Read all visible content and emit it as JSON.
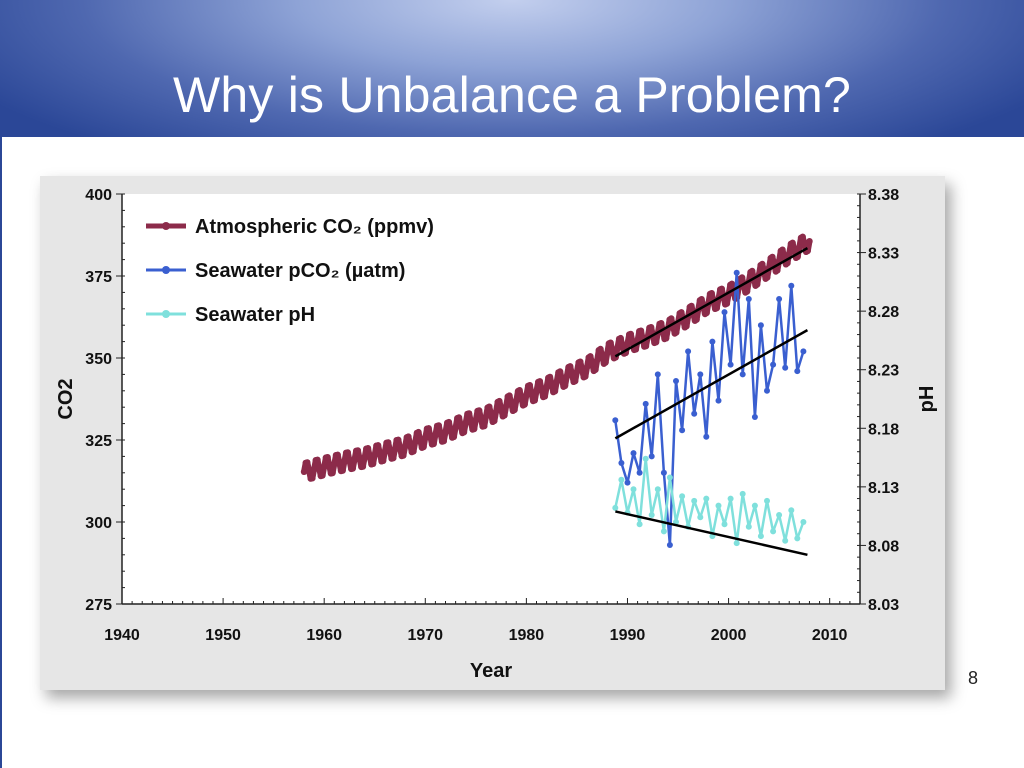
{
  "slide": {
    "title": "Why is Unbalance a Problem?",
    "page_number": "8"
  },
  "colors": {
    "header_dark": "#2b4797",
    "atmospheric": "#8c2b4a",
    "seawater_pco2": "#3a5fd0",
    "seawater_ph": "#7fe0dc",
    "trend": "#000000"
  },
  "chart_data": {
    "type": "line",
    "xlabel": "Year",
    "ylabel": "CO2",
    "y2label": "pH",
    "xlim": [
      1940,
      2013
    ],
    "ylim": [
      275,
      400
    ],
    "y2lim": [
      8.03,
      8.38
    ],
    "xticks": [
      "1940",
      "1950",
      "1960",
      "1970",
      "1980",
      "1990",
      "2000",
      "2010"
    ],
    "yticks": [
      "275",
      "300",
      "325",
      "350",
      "375",
      "400"
    ],
    "y2ticks": [
      "8.03",
      "8.08",
      "8.13",
      "8.18",
      "8.23",
      "8.28",
      "8.33",
      "8.38"
    ],
    "legend_position": "top-left",
    "series": [
      {
        "name": "Atmospheric CO₂ (ppmv)",
        "axis": "left",
        "color": "#8c2b4a",
        "x": [
          1958,
          1960,
          1962,
          1964,
          1966,
          1968,
          1970,
          1972,
          1974,
          1976,
          1978,
          1980,
          1982,
          1984,
          1986,
          1988,
          1990,
          1992,
          1994,
          1996,
          1998,
          2000,
          2002,
          2004,
          2006,
          2008
        ],
        "y": [
          315.3,
          316.9,
          318.4,
          319.6,
          321.4,
          323.0,
          325.7,
          327.4,
          330.2,
          332.0,
          335.4,
          338.7,
          341.1,
          344.4,
          347.2,
          351.6,
          354.4,
          356.4,
          358.8,
          362.6,
          366.7,
          369.4,
          373.2,
          377.5,
          381.9,
          385.6
        ]
      },
      {
        "name": "Seawater pCO₂ (µatm)",
        "axis": "left",
        "color": "#3a5fd0",
        "x": [
          1988.8,
          1989.4,
          1990.0,
          1990.6,
          1991.2,
          1991.8,
          1992.4,
          1993.0,
          1993.6,
          1994.2,
          1994.8,
          1995.4,
          1996.0,
          1996.6,
          1997.2,
          1997.8,
          1998.4,
          1999.0,
          1999.6,
          2000.2,
          2000.8,
          2001.4,
          2002.0,
          2002.6,
          2003.2,
          2003.8,
          2004.4,
          2005.0,
          2005.6,
          2006.2,
          2006.8,
          2007.4
        ],
        "y": [
          331,
          318,
          312,
          321,
          315,
          336,
          320,
          345,
          315,
          293,
          343,
          328,
          352,
          333,
          345,
          326,
          355,
          337,
          364,
          348,
          376,
          345,
          368,
          332,
          360,
          340,
          348,
          368,
          347,
          372,
          346,
          352
        ]
      },
      {
        "name": "Seawater pH",
        "axis": "right",
        "color": "#7fe0dc",
        "x": [
          1988.8,
          1989.4,
          1990.0,
          1990.6,
          1991.2,
          1991.8,
          1992.4,
          1993.0,
          1993.6,
          1994.2,
          1994.8,
          1995.4,
          1996.0,
          1996.6,
          1997.2,
          1997.8,
          1998.4,
          1999.0,
          1999.6,
          2000.2,
          2000.8,
          2001.4,
          2002.0,
          2002.6,
          2003.2,
          2003.8,
          2004.4,
          2005.0,
          2005.6,
          2006.2,
          2006.8,
          2007.4
        ],
        "y": [
          8.112,
          8.136,
          8.108,
          8.128,
          8.098,
          8.154,
          8.106,
          8.128,
          8.092,
          8.138,
          8.1,
          8.122,
          8.096,
          8.118,
          8.104,
          8.12,
          8.088,
          8.114,
          8.098,
          8.12,
          8.082,
          8.124,
          8.096,
          8.114,
          8.088,
          8.118,
          8.092,
          8.106,
          8.084,
          8.11,
          8.086,
          8.1
        ]
      }
    ],
    "trend_lines": [
      {
        "series": "Atmospheric CO₂ (ppmv)",
        "axis": "left",
        "x": [
          1988.8,
          2007.8
        ],
        "y": [
          350.5,
          383.5
        ]
      },
      {
        "series": "Seawater pCO₂ (µatm)",
        "axis": "left",
        "x": [
          1988.8,
          2007.8
        ],
        "y": [
          325.5,
          358.5
        ]
      },
      {
        "series": "Seawater pH",
        "axis": "right",
        "x": [
          1988.8,
          2007.8
        ],
        "y": [
          8.109,
          8.072
        ]
      }
    ]
  }
}
